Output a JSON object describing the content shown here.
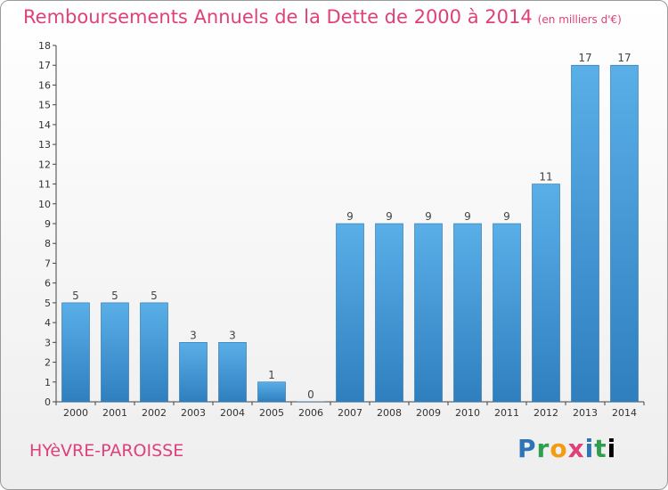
{
  "header": {
    "title": "Remboursements Annuels de la Dette de 2000 à 2014",
    "unit": "(en milliers d'€)"
  },
  "footer": {
    "commune": "HYèVRE-PAROISSE",
    "logo_letters": [
      "P",
      "r",
      "o",
      "x",
      "i",
      "t",
      "i"
    ]
  },
  "colors": {
    "bar_top": "#5aafe8",
    "bar_bottom": "#2f7fbf",
    "title": "#e0407a"
  },
  "chart_data": {
    "type": "bar",
    "title": "Remboursements Annuels de la Dette de 2000 à 2014",
    "xlabel": "",
    "ylabel": "",
    "categories": [
      "2000",
      "2001",
      "2002",
      "2003",
      "2004",
      "2005",
      "2006",
      "2007",
      "2008",
      "2009",
      "2010",
      "2011",
      "2012",
      "2013",
      "2014"
    ],
    "values": [
      5,
      5,
      5,
      3,
      3,
      1,
      0,
      9,
      9,
      9,
      9,
      9,
      11,
      17,
      17
    ],
    "value_labels": [
      "5",
      "5",
      "5",
      "3",
      "3",
      "1",
      "0",
      "9",
      "9",
      "9",
      "9",
      "9",
      "11",
      "17",
      "17"
    ],
    "ylim": [
      0,
      18
    ],
    "yticks": [
      "0",
      "1",
      "2",
      "3",
      "4",
      "5",
      "6",
      "7",
      "8",
      "9",
      "10",
      "11",
      "12",
      "13",
      "14",
      "15",
      "16",
      "17",
      "18"
    ],
    "grid": false,
    "legend": "none"
  }
}
